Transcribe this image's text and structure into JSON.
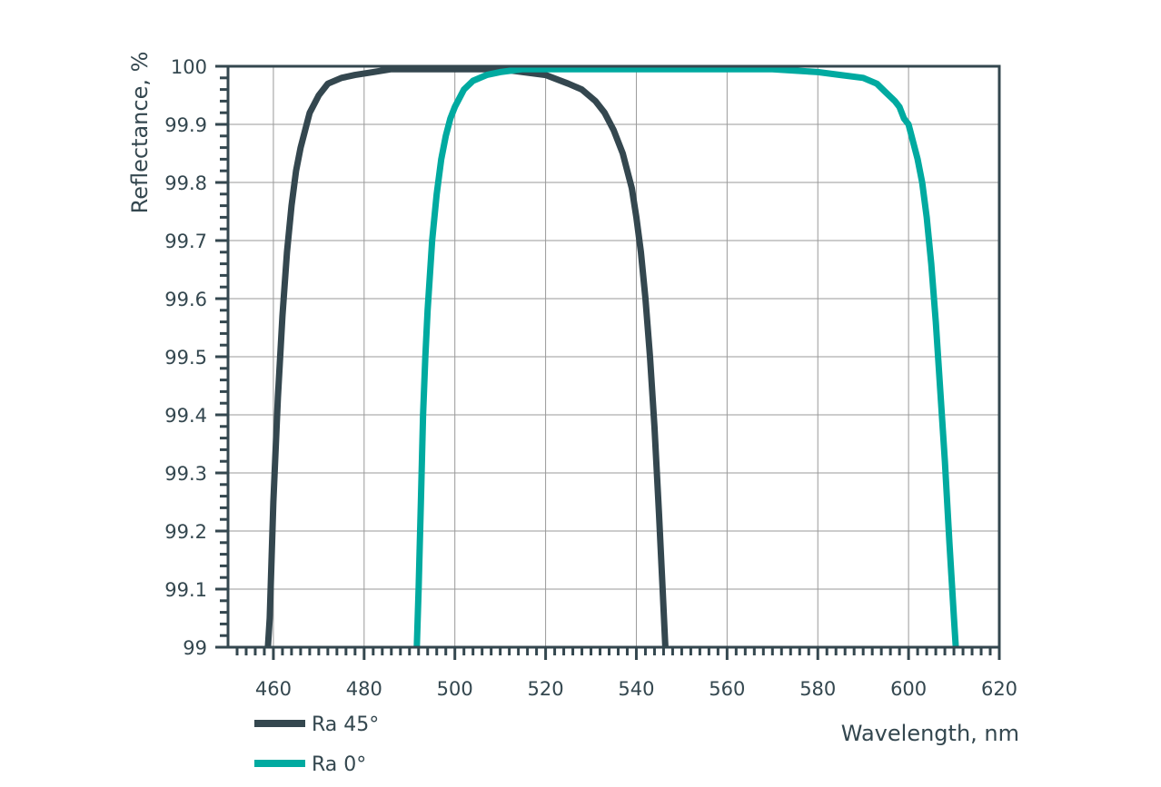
{
  "chart_data": {
    "type": "line",
    "xlabel": "Wavelength, nm",
    "ylabel": "Reflectance, %",
    "xlim": [
      450,
      620
    ],
    "ylim": [
      99,
      100
    ],
    "x_ticks": [
      "460",
      "480",
      "500",
      "520",
      "540",
      "560",
      "580",
      "600",
      "620"
    ],
    "x_tick_values": [
      460,
      480,
      500,
      520,
      540,
      560,
      580,
      600,
      620
    ],
    "y_ticks": [
      "99",
      "99.1",
      "99.2",
      "99.3",
      "99.4",
      "99.5",
      "99.6",
      "99.7",
      "99.8",
      "99.9",
      "100"
    ],
    "y_tick_values": [
      99,
      99.1,
      99.2,
      99.3,
      99.4,
      99.5,
      99.6,
      99.7,
      99.8,
      99.9,
      100
    ],
    "grid": true,
    "legend_position": "bottom-left",
    "colors": {
      "axis": "#34474f",
      "grid": "#9a9a9a"
    },
    "series": [
      {
        "name": "Ra 45°",
        "color": "#34474f",
        "x": [
          458.8,
          459.2,
          460,
          461,
          462,
          463,
          464,
          465,
          466,
          467,
          468,
          470,
          472,
          475,
          478,
          482,
          486,
          490,
          495,
          500,
          505,
          510,
          515,
          520,
          525,
          528,
          531,
          533,
          535,
          537,
          538,
          539,
          540,
          541,
          542,
          543,
          544,
          545,
          545.8,
          546.4
        ],
        "y": [
          99.0,
          99.05,
          99.25,
          99.43,
          99.57,
          99.68,
          99.76,
          99.82,
          99.86,
          99.89,
          99.92,
          99.95,
          99.97,
          99.98,
          99.985,
          99.99,
          99.995,
          99.995,
          99.995,
          99.995,
          99.995,
          99.995,
          99.99,
          99.985,
          99.97,
          99.96,
          99.94,
          99.92,
          99.89,
          99.85,
          99.82,
          99.79,
          99.74,
          99.68,
          99.6,
          99.5,
          99.38,
          99.23,
          99.1,
          99.0
        ]
      },
      {
        "name": "Ra 0°",
        "color": "#00aaa0",
        "x": [
          491.6,
          492,
          492.5,
          493,
          493.5,
          494,
          495,
          496,
          497,
          498,
          499,
          500,
          502,
          504,
          507,
          510,
          515,
          520,
          530,
          540,
          550,
          560,
          570,
          580,
          585,
          590,
          593,
          595,
          597,
          598,
          599,
          600,
          601,
          602,
          603,
          604,
          605,
          606,
          607,
          608,
          609,
          610,
          610.4
        ],
        "y": [
          99.0,
          99.1,
          99.25,
          99.4,
          99.5,
          99.58,
          99.7,
          99.78,
          99.84,
          99.88,
          99.91,
          99.93,
          99.96,
          99.975,
          99.985,
          99.99,
          99.995,
          99.995,
          99.995,
          99.995,
          99.995,
          99.995,
          99.995,
          99.99,
          99.985,
          99.98,
          99.97,
          99.955,
          99.94,
          99.93,
          99.91,
          99.9,
          99.87,
          99.84,
          99.8,
          99.74,
          99.66,
          99.56,
          99.44,
          99.32,
          99.18,
          99.05,
          99.0
        ]
      }
    ]
  }
}
